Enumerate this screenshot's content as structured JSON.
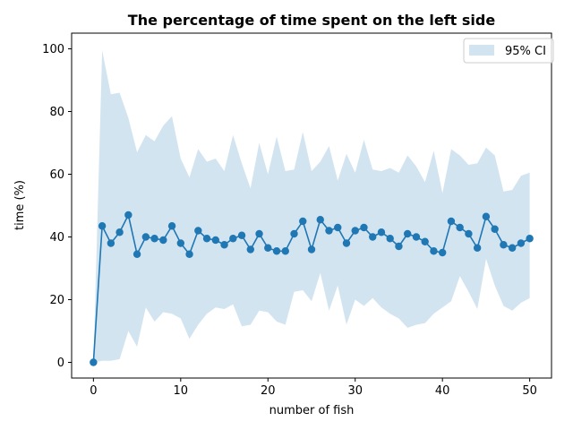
{
  "chart_data": {
    "type": "line",
    "title": "The percentage of time spent on the left side",
    "xlabel": "number of fish",
    "ylabel": "time (%)",
    "xlim": [
      -2.5,
      52.5
    ],
    "ylim": [
      -5,
      105
    ],
    "x_ticks": [
      0,
      10,
      20,
      30,
      40,
      50
    ],
    "y_ticks": [
      0,
      20,
      40,
      60,
      80,
      100
    ],
    "x": [
      0,
      1,
      2,
      3,
      4,
      5,
      6,
      7,
      8,
      9,
      10,
      11,
      12,
      13,
      14,
      15,
      16,
      17,
      18,
      19,
      20,
      21,
      22,
      23,
      24,
      25,
      26,
      27,
      28,
      29,
      30,
      31,
      32,
      33,
      34,
      35,
      36,
      37,
      38,
      39,
      40,
      41,
      42,
      43,
      44,
      45,
      46,
      47,
      48,
      49,
      50
    ],
    "series": [
      {
        "type": "line",
        "marker": "circle",
        "values": [
          0,
          43.5,
          38,
          41.5,
          47,
          34.5,
          40,
          39.5,
          39,
          43.5,
          38,
          34.5,
          42,
          39.5,
          39,
          37.5,
          39.5,
          40.5,
          36,
          41,
          36.5,
          35.5,
          35.5,
          41,
          45,
          36,
          45.5,
          42,
          43,
          38,
          42,
          43,
          40,
          41.5,
          39.5,
          37,
          41,
          40,
          38.5,
          35.5,
          35,
          45,
          43,
          41,
          36.5,
          46.5,
          42.5,
          37.5,
          36.5,
          38,
          39.5
        ]
      },
      {
        "name": "95% CI",
        "type": "area",
        "lower": [
          0,
          0.5,
          0.5,
          1,
          10,
          5,
          17.5,
          13,
          16,
          15.5,
          14,
          7.5,
          12,
          15.5,
          17.5,
          17,
          18.5,
          11.5,
          12,
          16.5,
          16,
          13,
          12,
          22.5,
          23,
          19.5,
          28.5,
          16.5,
          24.5,
          12,
          20,
          18,
          20.5,
          17.5,
          15.5,
          14,
          11,
          12,
          12.5,
          15.5,
          17.5,
          19.5,
          27.5,
          22.5,
          17,
          33,
          24.5,
          18,
          16.5,
          19,
          20.5
        ],
        "upper": [
          0,
          99.5,
          85.5,
          86,
          78,
          67,
          72.5,
          70.5,
          75.5,
          78.5,
          65,
          59,
          68,
          64,
          65,
          61,
          72.5,
          63.5,
          55.5,
          70,
          60,
          72,
          61,
          61.5,
          73.5,
          61,
          64,
          69,
          58,
          66.5,
          60.5,
          71,
          61.5,
          61,
          62,
          60.5,
          66,
          62.5,
          57.5,
          67.5,
          54,
          68,
          66,
          63,
          63.5,
          68.5,
          66,
          54.5,
          55,
          59.5,
          60.5
        ]
      }
    ],
    "legend": {
      "position": "upper right",
      "entries": [
        "95% CI"
      ]
    },
    "grid": false,
    "colors": {
      "line": "#1f77b4",
      "ci_fill": "#d3e4f1",
      "axes": "#000000",
      "background": "#ffffff"
    }
  }
}
